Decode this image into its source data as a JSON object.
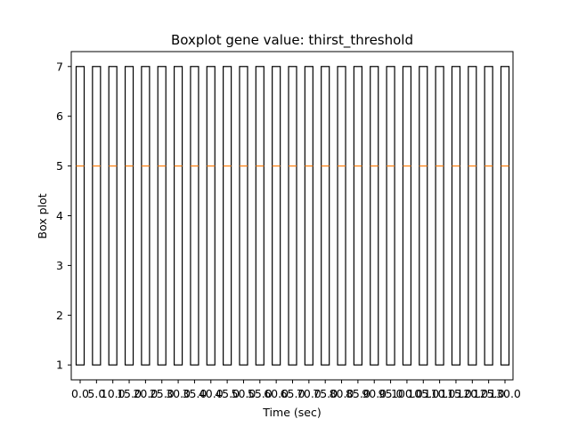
{
  "chart_data": {
    "type": "boxplot",
    "title": "Boxplot gene value: thirst_threshold",
    "xlabel": "Time (sec)",
    "ylabel": "Box plot",
    "categories": [
      "0.0",
      "5.0",
      "10.0",
      "15.0",
      "20.0",
      "25.0",
      "30.0",
      "35.0",
      "40.0",
      "45.0",
      "50.0",
      "55.0",
      "60.0",
      "65.0",
      "70.0",
      "75.0",
      "80.0",
      "85.0",
      "90.0",
      "95.0",
      "100.0",
      "105.0",
      "110.0",
      "115.0",
      "120.0",
      "125.0",
      "130.0"
    ],
    "box": {
      "min": 1,
      "q1": 1,
      "median": 5,
      "q3": 7,
      "max": 7
    },
    "yticks": [
      1,
      2,
      3,
      4,
      5,
      6,
      7
    ],
    "ylim": [
      0.7,
      7.3
    ],
    "grid": false,
    "colors": {
      "box": "#000000",
      "median": "#ff7f0e"
    }
  }
}
